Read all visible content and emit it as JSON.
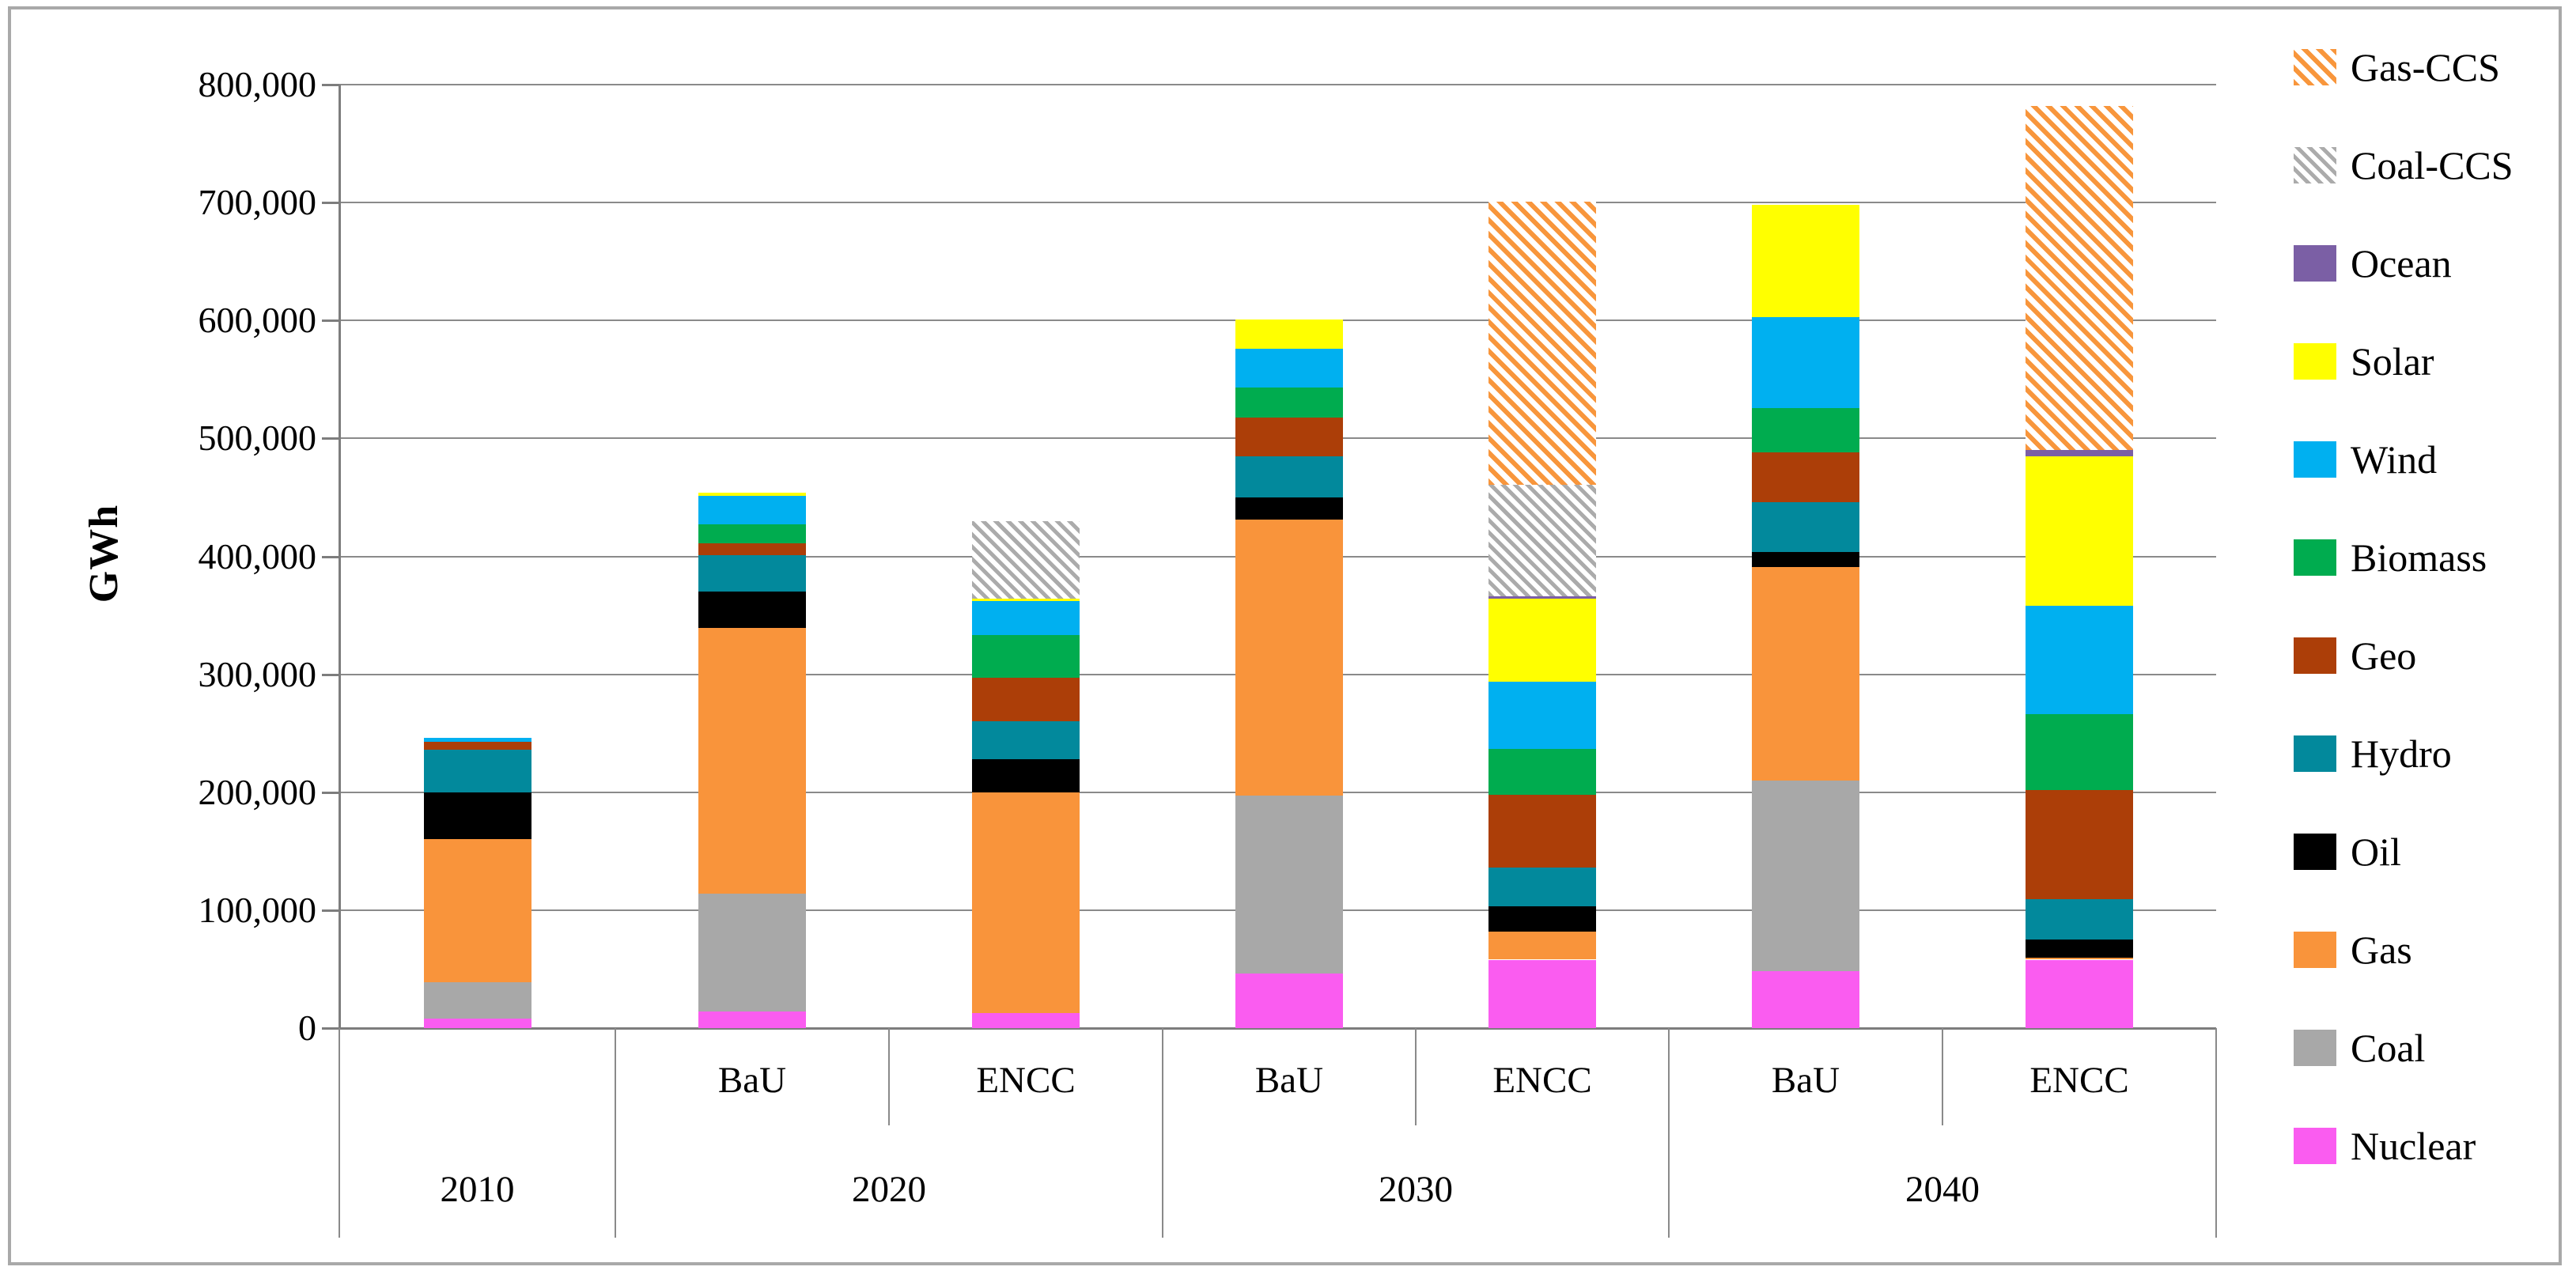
{
  "chart_data": {
    "type": "bar",
    "subtype": "stacked",
    "title": "",
    "ylabel": "GWh",
    "xlabel": "",
    "legend_position": "right",
    "grid": true,
    "axis": {
      "ymin": 0,
      "ymax": 800000,
      "ystep": 100000
    },
    "ytick_labels": [
      "0",
      "100,000",
      "200,000",
      "300,000",
      "400,000",
      "500,000",
      "600,000",
      "700,000",
      "800,000"
    ],
    "groups": [
      {
        "year": "2010",
        "scenarios": []
      },
      {
        "year": "2020",
        "scenarios": [
          "BaU",
          "ENCC"
        ]
      },
      {
        "year": "2030",
        "scenarios": [
          "BaU",
          "ENCC"
        ]
      },
      {
        "year": "2040",
        "scenarios": [
          "BaU",
          "ENCC"
        ]
      }
    ],
    "bar_labels": [
      "2010",
      "2020 BaU",
      "2020 ENCC",
      "2030 BaU",
      "2030 ENCC",
      "2040 BaU",
      "2040 ENCC"
    ],
    "series": [
      {
        "name": "Nuclear",
        "color": "#fa5cf0",
        "hatch": false,
        "values": [
          8000,
          14000,
          13000,
          46000,
          58000,
          48000,
          58000
        ]
      },
      {
        "name": "Coal",
        "color": "#a8a8a8",
        "hatch": false,
        "values": [
          31000,
          100000,
          0,
          151000,
          0,
          162000,
          0
        ]
      },
      {
        "name": "Gas",
        "color": "#f9943b",
        "hatch": false,
        "values": [
          121000,
          225000,
          187000,
          234000,
          24000,
          181000,
          2000
        ]
      },
      {
        "name": "Oil",
        "color": "#000000",
        "hatch": false,
        "values": [
          40000,
          31000,
          28000,
          19000,
          21000,
          13000,
          15000
        ]
      },
      {
        "name": "Hydro",
        "color": "#02899c",
        "hatch": false,
        "values": [
          36000,
          31000,
          32000,
          35000,
          33000,
          42000,
          34000
        ]
      },
      {
        "name": "Geo",
        "color": "#ac3e08",
        "hatch": false,
        "values": [
          7000,
          10000,
          37000,
          33000,
          62000,
          42000,
          93000
        ]
      },
      {
        "name": "Biomass",
        "color": "#00ac4f",
        "hatch": false,
        "values": [
          0,
          16000,
          36000,
          25000,
          39000,
          38000,
          64000
        ]
      },
      {
        "name": "Wind",
        "color": "#00b0f0",
        "hatch": false,
        "values": [
          3000,
          24000,
          29000,
          33000,
          57000,
          77000,
          92000
        ]
      },
      {
        "name": "Solar",
        "color": "#ffff00",
        "hatch": false,
        "values": [
          0,
          3000,
          2000,
          25000,
          70000,
          95000,
          127000
        ]
      },
      {
        "name": "Ocean",
        "color": "#7b5fa5",
        "hatch": false,
        "values": [
          0,
          0,
          0,
          0,
          2000,
          0,
          5000
        ]
      },
      {
        "name": "Coal-CCS",
        "color": "#ababab",
        "hatch": true,
        "hatch_class": "fill-hatch-coal",
        "values": [
          0,
          0,
          66000,
          0,
          95000,
          0,
          0
        ]
      },
      {
        "name": "Gas-CCS",
        "color": "#f8963c",
        "hatch": true,
        "hatch_class": "fill-hatch-gas",
        "values": [
          0,
          0,
          0,
          0,
          240000,
          0,
          292000
        ]
      }
    ]
  }
}
